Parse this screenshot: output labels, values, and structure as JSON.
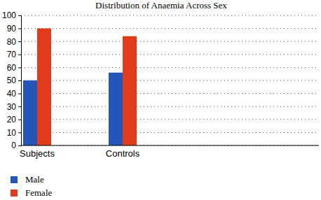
{
  "chart_data": {
    "type": "bar",
    "title": "Distribution of Anaemia Across Sex",
    "categories": [
      "Subjects",
      "Controls"
    ],
    "series": [
      {
        "name": "Male",
        "color": "#2356b8",
        "values": [
          50,
          56
        ]
      },
      {
        "name": "Female",
        "color": "#e03c1c",
        "values": [
          90,
          84
        ]
      }
    ],
    "ylim": [
      0,
      100
    ],
    "yticks": [
      0,
      10,
      20,
      30,
      40,
      50,
      60,
      70,
      80,
      90,
      100
    ],
    "grid": true,
    "legend": "bottom-left"
  }
}
